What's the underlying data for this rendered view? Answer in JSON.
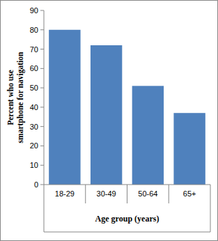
{
  "chart_data": {
    "type": "bar",
    "x_label": "Age group (years)",
    "y_label": "Percent who use smartphone for navigation",
    "categories": [
      "18-29",
      "30-49",
      "50-64",
      "65+"
    ],
    "values": [
      80,
      72,
      51,
      37
    ],
    "color": "#4f81bd",
    "ylim": [
      0,
      90
    ],
    "yticks": [
      0,
      10,
      20,
      30,
      40,
      50,
      60,
      70,
      80,
      90
    ],
    "grid": false
  }
}
